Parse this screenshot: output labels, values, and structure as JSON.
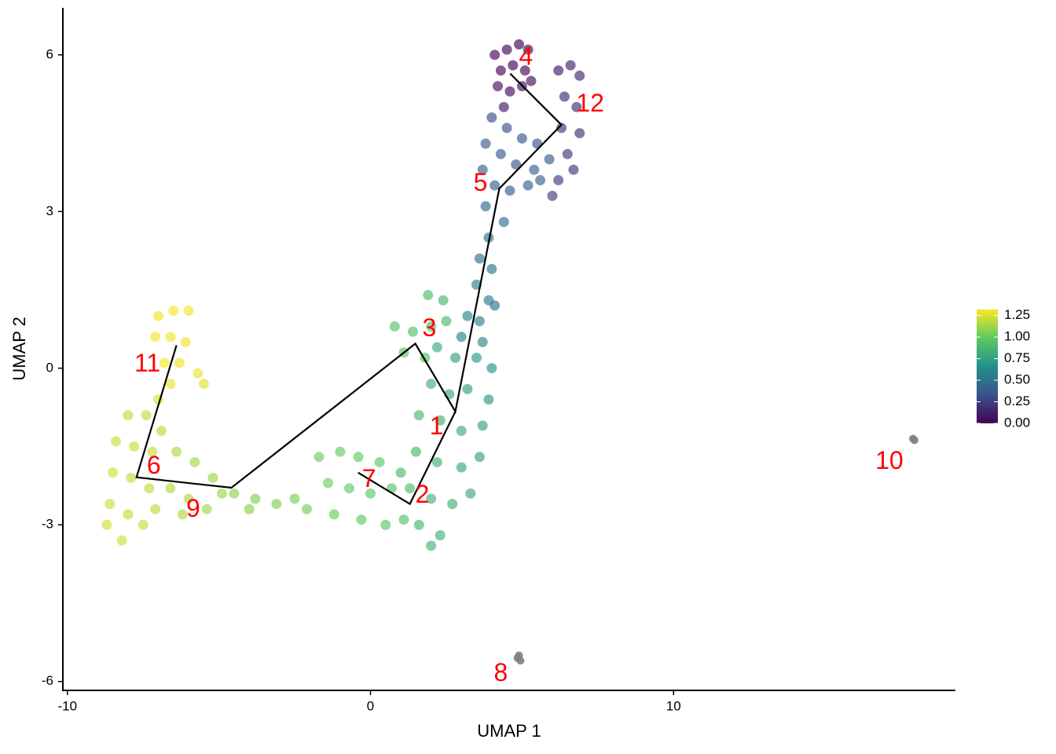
{
  "chart_data": {
    "type": "scatter",
    "x_label": "UMAP 1",
    "y_label": "UMAP 2",
    "xlim": [
      -10.15,
      19.3
    ],
    "ylim": [
      -6.17,
      6.9
    ],
    "xticks": [
      -10,
      0,
      10
    ],
    "yticks": [
      -6,
      -3,
      0,
      3,
      6
    ],
    "colormap": [
      "#440154",
      "#3b528b",
      "#21918c",
      "#5ec962",
      "#fde725"
    ],
    "clim": [
      0,
      1.32
    ],
    "cticks": [
      {
        "value": 0,
        "label": "0.00"
      },
      {
        "value": 0.25,
        "label": "0.25"
      },
      {
        "value": 0.5,
        "label": "0.50"
      },
      {
        "value": 0.75,
        "label": "0.75"
      },
      {
        "value": 1,
        "label": "1.00"
      },
      {
        "value": 1.25,
        "label": "1.25"
      }
    ],
    "series": [
      {
        "x": [
          4.1,
          4.5,
          4.9,
          5.2,
          4.3,
          4.7,
          5.1,
          4.2,
          4.6,
          5.0,
          5.3,
          4.4,
          6.2,
          6.6,
          6.9,
          6.4,
          6.8,
          6.3,
          6.9,
          6.5,
          6.2,
          6.0,
          6.7,
          4.0,
          4.5,
          5.0,
          5.5,
          3.8,
          4.3,
          4.8,
          5.4,
          3.7,
          4.1,
          4.6,
          5.2,
          3.8,
          4.4,
          5.6,
          5.9,
          3.9,
          3.6,
          4.0,
          3.5,
          3.9,
          3.2,
          3.6,
          4.1,
          3.0,
          3.7,
          2.2,
          2.8,
          3.5,
          4.0,
          2.0,
          2.6,
          3.2,
          3.9,
          1.6,
          2.3,
          3.0,
          3.7,
          1.5,
          2.2,
          3.0,
          3.6,
          1.3,
          2.0,
          2.7,
          3.3,
          1.6,
          2.3,
          2.0,
          1.0,
          0.8,
          1.4,
          2.0,
          2.5,
          1.1,
          1.8,
          2.4,
          1.9,
          -1.7,
          -1.0,
          -0.4,
          0.3,
          -1.4,
          -0.7,
          0.0,
          0.7,
          -1.2,
          -0.3,
          0.5,
          1.1,
          -4.5,
          -3.8,
          -3.1,
          -2.5,
          -2.1,
          -4.0,
          -6.4,
          -5.8,
          -5.2,
          -4.9,
          -6.6,
          -6.0,
          -5.4,
          -6.2,
          -8.0,
          -7.4,
          -8.4,
          -7.8,
          -7.2,
          -8.5,
          -7.9,
          -7.3,
          -8.6,
          -8.0,
          -7.5,
          -8.7,
          -8.2,
          -7.1,
          -6.9,
          -7.0,
          -6.5,
          -6.0,
          -7.1,
          -6.6,
          -6.1,
          -6.8,
          -6.3,
          -5.7,
          -6.6,
          -5.5,
          -7.0
        ],
        "y": [
          6.0,
          6.1,
          6.2,
          6.1,
          5.7,
          5.8,
          5.7,
          5.4,
          5.3,
          5.4,
          5.5,
          5.0,
          5.7,
          5.8,
          5.6,
          5.2,
          5.0,
          4.6,
          4.5,
          4.1,
          3.6,
          3.3,
          3.8,
          4.8,
          4.6,
          4.4,
          4.3,
          4.3,
          4.1,
          3.9,
          3.8,
          3.8,
          3.5,
          3.4,
          3.5,
          3.1,
          2.8,
          3.6,
          4.0,
          2.5,
          2.1,
          1.9,
          1.6,
          1.3,
          1.0,
          0.9,
          1.2,
          0.6,
          0.5,
          0.4,
          0.2,
          0.2,
          0.0,
          -0.3,
          -0.5,
          -0.4,
          -0.6,
          -0.9,
          -1.0,
          -1.2,
          -1.1,
          -1.6,
          -1.8,
          -1.9,
          -1.7,
          -2.3,
          -2.5,
          -2.6,
          -2.4,
          -3.0,
          -3.2,
          -3.4,
          -2.0,
          0.8,
          0.7,
          0.8,
          0.9,
          0.3,
          0.2,
          1.3,
          1.4,
          -1.7,
          -1.6,
          -1.7,
          -1.8,
          -2.2,
          -2.3,
          -2.4,
          -2.3,
          -2.8,
          -2.9,
          -3.0,
          -2.9,
          -2.4,
          -2.5,
          -2.6,
          -2.5,
          -2.7,
          -2.7,
          -1.6,
          -1.8,
          -2.1,
          -2.4,
          -2.3,
          -2.5,
          -2.7,
          -2.8,
          -0.9,
          -0.9,
          -1.4,
          -1.5,
          -1.6,
          -2.0,
          -2.1,
          -2.3,
          -2.6,
          -2.8,
          -3.0,
          -3.0,
          -3.3,
          -2.7,
          -1.2,
          1.0,
          1.1,
          1.1,
          0.6,
          0.6,
          0.5,
          0.1,
          0.1,
          -0.1,
          -0.3,
          -0.3,
          -0.6
        ],
        "values": [
          0.0,
          0.01,
          0.0,
          0.02,
          0.02,
          0.0,
          0.03,
          0.05,
          0.04,
          0.06,
          0.05,
          0.1,
          0.1,
          0.12,
          0.15,
          0.16,
          0.18,
          0.2,
          0.2,
          0.22,
          0.24,
          0.25,
          0.22,
          0.3,
          0.32,
          0.35,
          0.33,
          0.38,
          0.36,
          0.35,
          0.4,
          0.42,
          0.4,
          0.38,
          0.42,
          0.45,
          0.48,
          0.4,
          0.38,
          0.5,
          0.5,
          0.52,
          0.55,
          0.55,
          0.6,
          0.58,
          0.5,
          0.62,
          0.6,
          0.8,
          0.75,
          0.7,
          0.68,
          0.85,
          0.8,
          0.75,
          0.7,
          0.88,
          0.85,
          0.8,
          0.75,
          0.88,
          0.85,
          0.8,
          0.76,
          0.9,
          0.86,
          0.83,
          0.8,
          0.88,
          0.85,
          0.86,
          0.9,
          0.95,
          0.93,
          0.92,
          0.9,
          0.95,
          0.93,
          0.88,
          0.9,
          1.02,
          1.0,
          1.0,
          0.98,
          1.02,
          1.0,
          0.98,
          0.96,
          1.02,
          1.0,
          0.97,
          0.95,
          1.1,
          1.07,
          1.06,
          1.05,
          1.04,
          1.08,
          1.15,
          1.14,
          1.12,
          1.12,
          1.16,
          1.15,
          1.13,
          1.16,
          1.2,
          1.2,
          1.22,
          1.21,
          1.2,
          1.22,
          1.21,
          1.2,
          1.22,
          1.21,
          1.2,
          1.23,
          1.22,
          1.19,
          1.18,
          1.3,
          1.31,
          1.3,
          1.3,
          1.3,
          1.29,
          1.3,
          1.29,
          1.28,
          1.28,
          1.25,
          1.26
        ]
      },
      {
        "x": [
          4.85,
          4.95,
          4.9,
          17.9,
          17.95
        ],
        "y": [
          -5.55,
          -5.6,
          -5.5,
          -1.35,
          -1.38
        ],
        "color": "#7f7f7f"
      }
    ],
    "trajectory_color": "#000000",
    "lines": [
      {
        "x": [
          4.61,
          6.3,
          4.25,
          2.8,
          1.48,
          -4.59,
          -7.72,
          -6.4
        ],
        "y": [
          5.64,
          4.66,
          3.44,
          -0.83,
          0.47,
          -2.29,
          -2.09,
          0.44
        ]
      },
      {
        "x": [
          2.8,
          1.3,
          -0.41
        ],
        "y": [
          -0.83,
          -2.6,
          -2.0
        ]
      }
    ],
    "annotation_color": "#ff0000",
    "annotations": [
      {
        "text": "4",
        "x": 5.13,
        "y": 5.94
      },
      {
        "text": "12",
        "x": 7.25,
        "y": 5.04
      },
      {
        "text": "5",
        "x": 3.63,
        "y": 3.52
      },
      {
        "text": "3",
        "x": 1.94,
        "y": 0.74
      },
      {
        "text": "11",
        "x": -7.36,
        "y": 0.06
      },
      {
        "text": "1",
        "x": 2.18,
        "y": -1.14
      },
      {
        "text": "6",
        "x": -7.15,
        "y": -1.89
      },
      {
        "text": "7",
        "x": -0.05,
        "y": -2.15
      },
      {
        "text": "2",
        "x": 1.71,
        "y": -2.45
      },
      {
        "text": "9",
        "x": -5.85,
        "y": -2.72
      },
      {
        "text": "8",
        "x": 4.3,
        "y": -5.86
      },
      {
        "text": "10",
        "x": 17.12,
        "y": -1.8
      }
    ]
  }
}
